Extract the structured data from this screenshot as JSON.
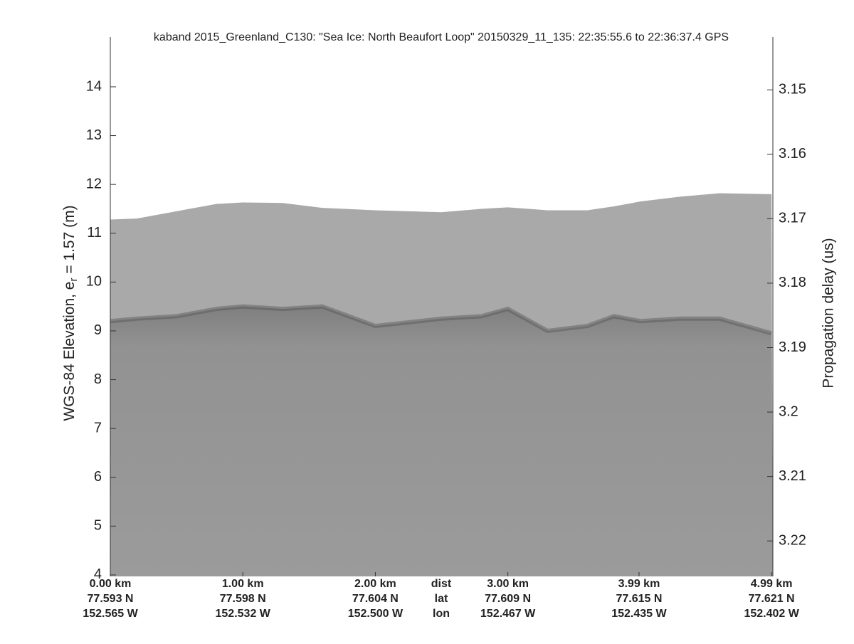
{
  "chart_data": {
    "type": "radargram",
    "title": "kaband 2015_Greenland_C130: \"Sea Ice: North Beaufort Loop\"  20150329_11_135: 22:35:55.6 to 22:36:37.4 GPS",
    "ylabel": "WGS-84 Elevation, e",
    "ylabel_sub": "r",
    "ylabel_tail": " = 1.57 (m)",
    "y2label": "Propagation delay (us)",
    "xlim": [
      0,
      5.0
    ],
    "ylim": [
      3.97,
      15.02
    ],
    "y2lim": [
      3.1418,
      3.2255
    ],
    "yticks": [
      4,
      5,
      6,
      7,
      8,
      9,
      10,
      11,
      12,
      13,
      14
    ],
    "y2ticks": [
      3.15,
      3.16,
      3.17,
      3.18,
      3.19,
      3.2,
      3.21,
      3.22
    ],
    "xticks": [
      {
        "value": 0,
        "label": "0.00 km"
      },
      {
        "value": 1,
        "label": "1.00 km"
      },
      {
        "value": 2,
        "label": "2.00 km"
      },
      {
        "value": 3,
        "label": "3.00 km"
      },
      {
        "value": 3.99,
        "label": "3.99 km"
      },
      {
        "value": 4.99,
        "label": "4.99 km"
      }
    ],
    "lat_labels": [
      "77.593 N",
      "77.598 N",
      "77.604 N",
      "77.609 N",
      "77.615 N",
      "77.621 N"
    ],
    "lon_labels": [
      "152.565 W",
      "152.532 W",
      "152.500 W",
      "152.467 W",
      "152.435 W",
      "152.402 W"
    ],
    "row_labels": [
      "dist",
      "lat",
      "lon"
    ],
    "x": [
      0,
      0.2,
      0.5,
      0.8,
      1.0,
      1.3,
      1.6,
      2.0,
      2.5,
      2.8,
      3.0,
      3.3,
      3.6,
      3.8,
      4.0,
      4.3,
      4.6,
      4.99
    ],
    "series": [
      {
        "color": "#a9a9a9",
        "values": [
          11.28,
          11.3,
          11.45,
          11.6,
          11.63,
          11.62,
          11.52,
          11.47,
          11.43,
          11.5,
          11.53,
          11.47,
          11.47,
          11.55,
          11.65,
          11.75,
          11.82,
          11.8
        ]
      },
      {
        "color": "#8c8c8c",
        "values": [
          9.2,
          9.25,
          9.3,
          9.45,
          9.5,
          9.45,
          9.5,
          9.1,
          9.25,
          9.3,
          9.45,
          9.0,
          9.1,
          9.3,
          9.2,
          9.25,
          9.25,
          8.95
        ]
      }
    ]
  }
}
